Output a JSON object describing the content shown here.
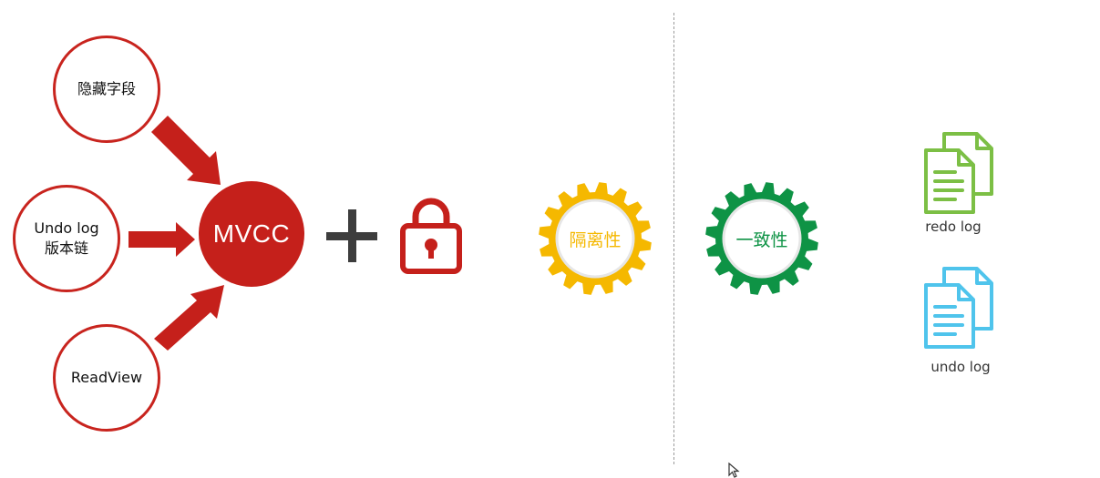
{
  "left_section": {
    "inputs": [
      {
        "label": "隐藏字段"
      },
      {
        "label": "Undo log\n版本链"
      },
      {
        "label": "ReadView"
      }
    ],
    "center_label": "MVCC",
    "operator": "+",
    "lock_icon": "lock-icon"
  },
  "gears": [
    {
      "label": "隔离性",
      "color": "#f5b800"
    },
    {
      "label": "一致性",
      "color": "#0e9345"
    }
  ],
  "right_section": {
    "docs": [
      {
        "label": "redo log",
        "color": "#7cbf45"
      },
      {
        "label": "undo log",
        "color": "#4fc4ec"
      }
    ]
  },
  "colors": {
    "accent_red": "#c5201b"
  }
}
